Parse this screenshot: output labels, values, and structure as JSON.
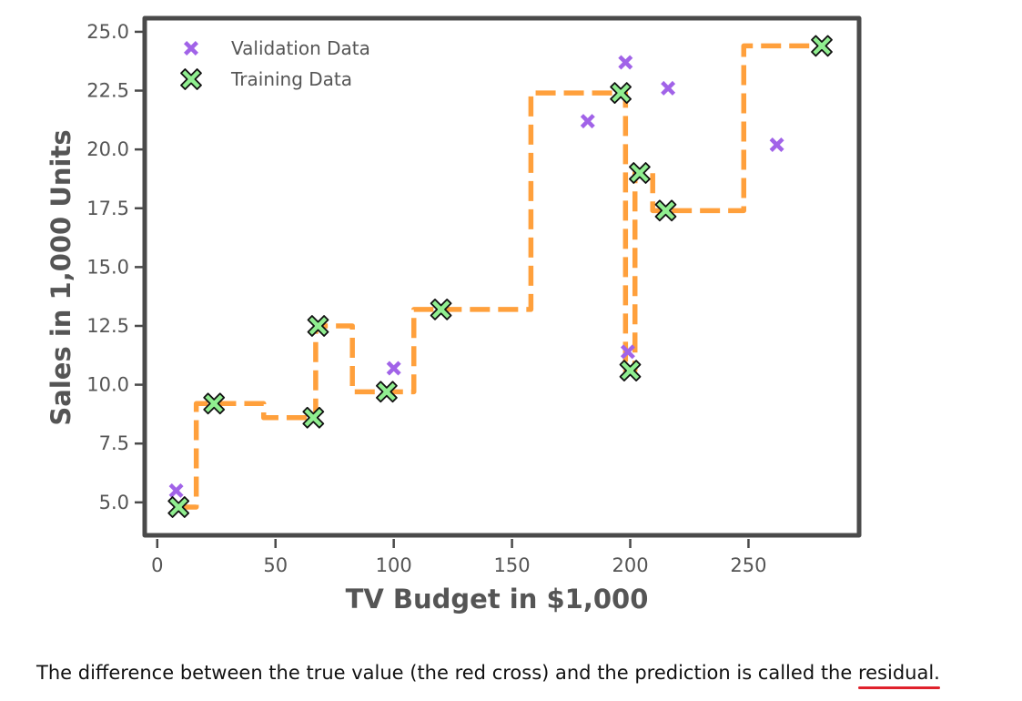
{
  "chart_data": {
    "type": "scatter",
    "xlabel": "TV Budget in $1,000",
    "ylabel": "Sales in 1,000 Units",
    "xlim": [
      -8,
      296
    ],
    "ylim": [
      3.6,
      25.5
    ],
    "x_ticks": [
      0,
      50,
      100,
      150,
      200,
      250
    ],
    "y_ticks": [
      5.0,
      7.5,
      10.0,
      12.5,
      15.0,
      17.5,
      20.0,
      22.5,
      25.0
    ],
    "x_tick_labels": [
      "0",
      "50",
      "100",
      "150",
      "200",
      "250"
    ],
    "y_tick_labels": [
      "5.0",
      "7.5",
      "10.0",
      "12.5",
      "15.0",
      "17.5",
      "20.0",
      "22.5",
      "25.0"
    ],
    "legend_position": "top-left",
    "grid": false,
    "series": [
      {
        "name": "Validation Data",
        "kind": "scatter",
        "color": "#a163e8",
        "x": [
          8,
          100,
          182,
          198,
          199,
          216,
          262
        ],
        "y": [
          5.5,
          10.7,
          21.2,
          23.7,
          11.4,
          22.6,
          20.2
        ]
      },
      {
        "name": "Training Data",
        "kind": "scatter",
        "color": "#90ee90",
        "x": [
          9,
          24,
          66,
          68,
          97,
          120,
          196,
          200,
          204,
          215,
          281
        ],
        "y": [
          4.8,
          9.2,
          8.6,
          12.5,
          9.7,
          13.2,
          22.4,
          10.6,
          19.0,
          17.4,
          24.4
        ]
      },
      {
        "name": "",
        "kind": "step-line",
        "color": "#ffa03c",
        "x": [
          9,
          16.5,
          16.5,
          45,
          45,
          67,
          67,
          82.5,
          82.5,
          108.5,
          108.5,
          158,
          158,
          198,
          198,
          202,
          202,
          209.5,
          209.5,
          248,
          248,
          281
        ],
        "y": [
          4.8,
          4.8,
          9.2,
          9.2,
          8.6,
          8.6,
          12.5,
          12.5,
          9.7,
          9.7,
          13.2,
          13.2,
          22.4,
          22.4,
          10.6,
          10.6,
          19.0,
          19.0,
          17.4,
          17.4,
          24.4,
          24.4
        ]
      }
    ]
  },
  "caption": {
    "text": "The difference between the true value (the red cross) and the prediction is called the ",
    "highlight": "residual."
  }
}
